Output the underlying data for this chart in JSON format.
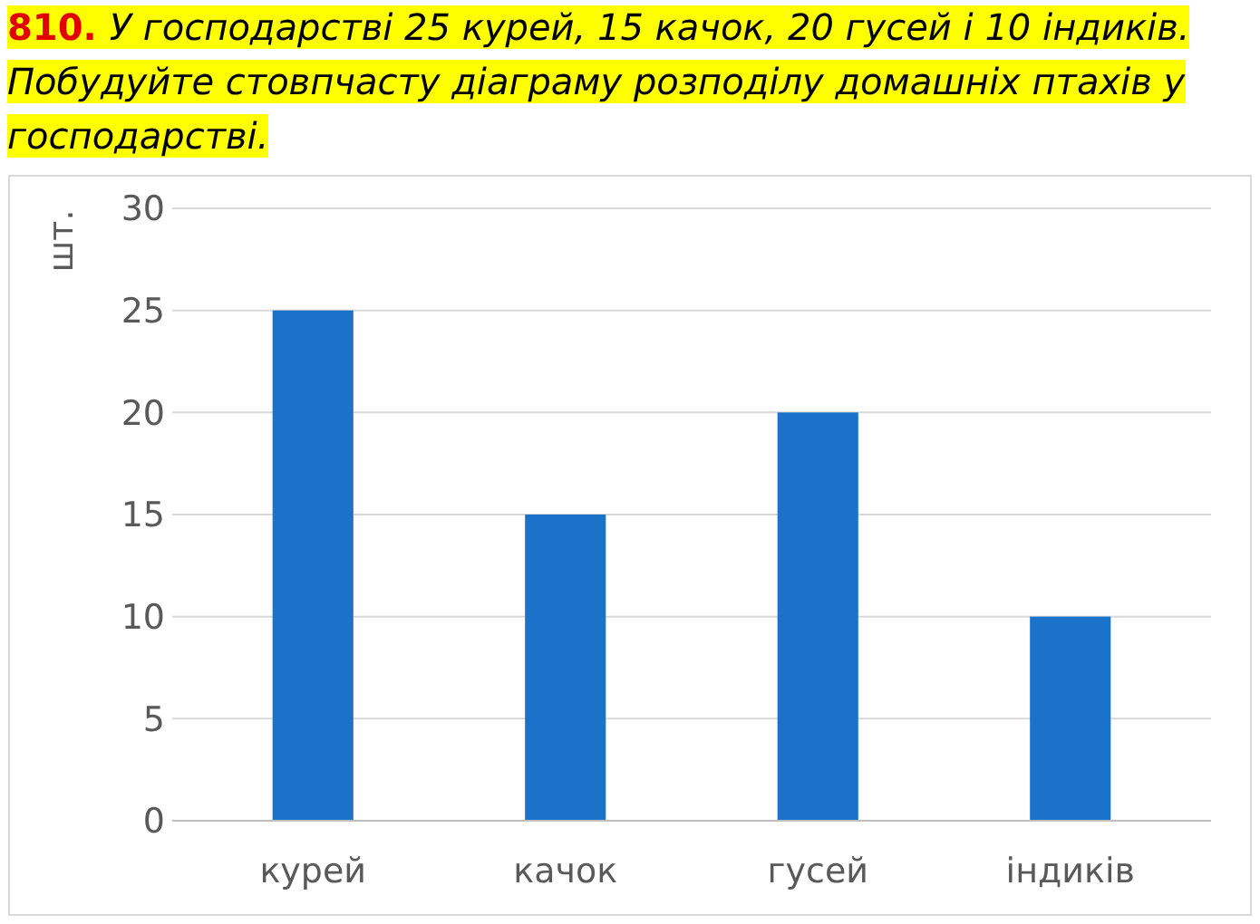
{
  "chart_data": {
    "type": "bar",
    "title": "У господарстві 25 курей, 15 качок, 20 гусей і 10 індиків. Побудуйте стовпчасту діаграму розподілу домашніх птахів у господарстві.",
    "annotations": [
      "810."
    ],
    "ylabel": "шт.",
    "categories": [
      "курей",
      "качок",
      "гусей",
      "індиків"
    ],
    "values": [
      25,
      15,
      20,
      10
    ],
    "color": "#1a73c8",
    "ylim": [
      0,
      30
    ],
    "yticks": [
      0,
      5,
      10,
      15,
      20,
      25,
      30
    ],
    "grid": "y"
  }
}
